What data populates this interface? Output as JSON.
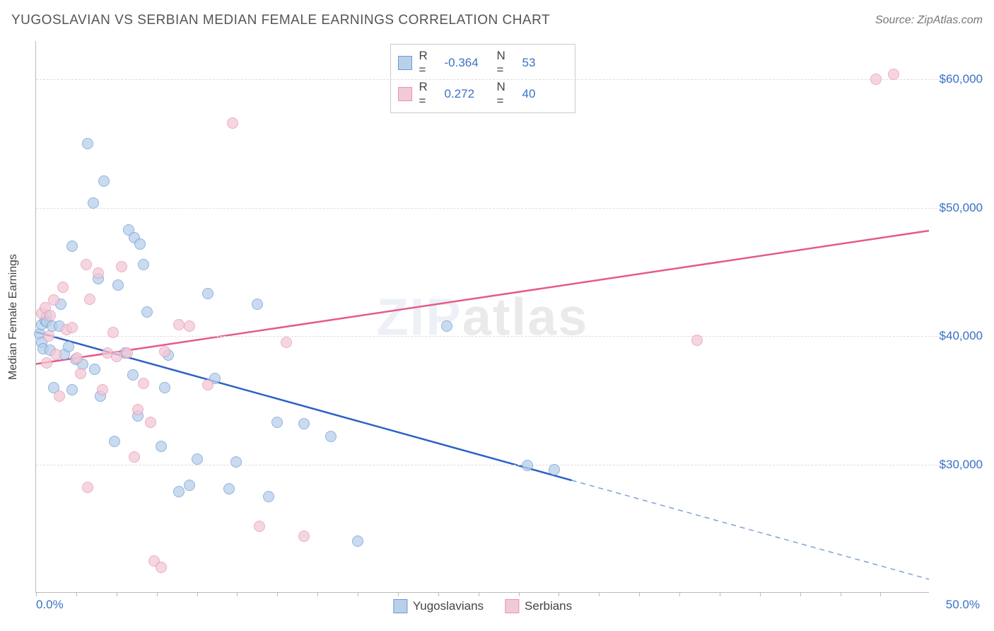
{
  "title": "YUGOSLAVIAN VS SERBIAN MEDIAN FEMALE EARNINGS CORRELATION CHART",
  "source": "Source: ZipAtlas.com",
  "watermark_a": "ZIP",
  "watermark_b": "atlas",
  "chart": {
    "type": "scatter",
    "background_color": "#ffffff",
    "grid_color": "#dddddd",
    "axis_color": "#bbbbbb",
    "tick_label_color": "#3a72c7",
    "y_axis_label": "Median Female Earnings",
    "xlim": [
      0,
      50
    ],
    "ylim": [
      20000,
      63000
    ],
    "x_tick_labels": [
      "0.0%",
      "50.0%"
    ],
    "x_tick_positions_pct": [
      0,
      4.5,
      9,
      13.5,
      18,
      22.5,
      27,
      31.5,
      36,
      40.5,
      45,
      49.5,
      54,
      58.5,
      63,
      67.5,
      72,
      76.5,
      81,
      85.5,
      90,
      94.5
    ],
    "y_gridlines": [
      {
        "value": 30000,
        "label": "$30,000"
      },
      {
        "value": 40000,
        "label": "$40,000"
      },
      {
        "value": 50000,
        "label": "$50,000"
      },
      {
        "value": 60000,
        "label": "$60,000"
      }
    ],
    "point_radius": 8,
    "series": [
      {
        "name": "Yugoslavians",
        "fill_color": "#b9d0ea",
        "stroke_color": "#6a9bd8",
        "fill_opacity": 0.75,
        "trend_color": "#2a62c7",
        "trend_width": 2.5,
        "trend_y_at_x0": 40300,
        "trend_y_at_xmax": 21000,
        "trend_solid_until_x": 30,
        "R": "-0.364",
        "N": "53",
        "points": [
          [
            0.2,
            40200
          ],
          [
            0.3,
            40900
          ],
          [
            0.3,
            39500
          ],
          [
            0.4,
            39000
          ],
          [
            0.5,
            41200
          ],
          [
            0.6,
            41600
          ],
          [
            0.6,
            41100
          ],
          [
            0.8,
            38900
          ],
          [
            0.9,
            40800
          ],
          [
            1.0,
            36000
          ],
          [
            1.3,
            40800
          ],
          [
            1.4,
            42500
          ],
          [
            1.6,
            38600
          ],
          [
            1.8,
            39200
          ],
          [
            2.0,
            35800
          ],
          [
            2.0,
            47000
          ],
          [
            2.2,
            38200
          ],
          [
            2.6,
            37800
          ],
          [
            2.9,
            55000
          ],
          [
            3.2,
            50400
          ],
          [
            3.3,
            37400
          ],
          [
            3.5,
            44500
          ],
          [
            3.6,
            35300
          ],
          [
            3.8,
            52100
          ],
          [
            4.4,
            31800
          ],
          [
            4.6,
            44000
          ],
          [
            5.0,
            38700
          ],
          [
            5.2,
            48300
          ],
          [
            5.4,
            37000
          ],
          [
            5.7,
            33800
          ],
          [
            5.5,
            47700
          ],
          [
            5.8,
            47200
          ],
          [
            6.0,
            45600
          ],
          [
            6.2,
            41900
          ],
          [
            7.0,
            31400
          ],
          [
            7.2,
            36000
          ],
          [
            7.4,
            38500
          ],
          [
            8.0,
            27900
          ],
          [
            8.6,
            28400
          ],
          [
            9.0,
            30400
          ],
          [
            9.6,
            43300
          ],
          [
            10.0,
            36700
          ],
          [
            10.8,
            28100
          ],
          [
            11.2,
            30200
          ],
          [
            12.4,
            42500
          ],
          [
            13.0,
            27500
          ],
          [
            13.5,
            33300
          ],
          [
            15.0,
            33200
          ],
          [
            16.5,
            32200
          ],
          [
            18.0,
            24000
          ],
          [
            23.0,
            40800
          ],
          [
            27.5,
            29900
          ],
          [
            29.0,
            29600
          ]
        ]
      },
      {
        "name": "Serbians",
        "fill_color": "#f2c9d6",
        "stroke_color": "#e993af",
        "fill_opacity": 0.75,
        "trend_color": "#e45a8c",
        "trend_width": 2.5,
        "trend_y_at_x0": 37800,
        "trend_y_at_xmax": 48200,
        "trend_solid_until_x": 50,
        "R": "0.272",
        "N": "40",
        "points": [
          [
            0.3,
            41800
          ],
          [
            0.5,
            42200
          ],
          [
            0.6,
            37900
          ],
          [
            0.7,
            40000
          ],
          [
            0.8,
            41600
          ],
          [
            1.0,
            42800
          ],
          [
            1.1,
            38600
          ],
          [
            1.3,
            35300
          ],
          [
            1.5,
            43800
          ],
          [
            1.7,
            40500
          ],
          [
            2.0,
            40700
          ],
          [
            2.3,
            38300
          ],
          [
            2.5,
            37100
          ],
          [
            2.8,
            45600
          ],
          [
            3.0,
            42900
          ],
          [
            2.9,
            28200
          ],
          [
            3.5,
            44900
          ],
          [
            3.7,
            35800
          ],
          [
            4.0,
            38700
          ],
          [
            4.3,
            40300
          ],
          [
            4.5,
            38400
          ],
          [
            4.8,
            45400
          ],
          [
            5.1,
            38700
          ],
          [
            5.5,
            30600
          ],
          [
            5.7,
            34300
          ],
          [
            6.0,
            36300
          ],
          [
            6.4,
            33300
          ],
          [
            6.6,
            22500
          ],
          [
            7.0,
            22000
          ],
          [
            7.2,
            38800
          ],
          [
            8.0,
            40900
          ],
          [
            8.6,
            40800
          ],
          [
            9.6,
            36200
          ],
          [
            11.0,
            56600
          ],
          [
            12.5,
            25200
          ],
          [
            14.0,
            39500
          ],
          [
            15.0,
            24400
          ],
          [
            37.0,
            39700
          ],
          [
            47.0,
            60000
          ],
          [
            48.0,
            60400
          ]
        ]
      }
    ],
    "legend_items": [
      {
        "label": "Yugoslavians",
        "fill": "#b9d0ea",
        "stroke": "#6a9bd8"
      },
      {
        "label": "Serbians",
        "fill": "#f2c9d6",
        "stroke": "#e993af"
      }
    ]
  }
}
